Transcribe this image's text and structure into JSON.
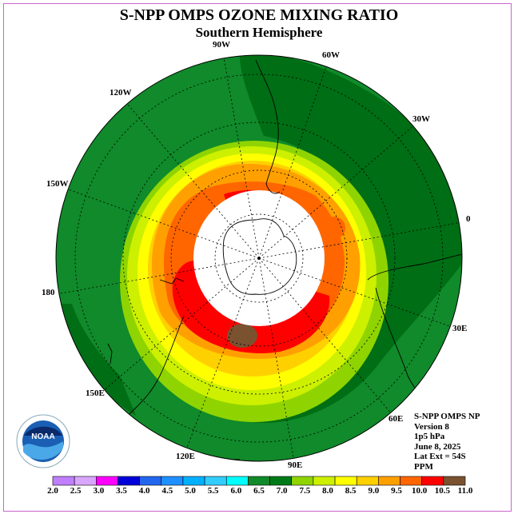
{
  "title": "S-NPP OMPS OZONE MIXING RATIO",
  "subtitle": "Southern Hemisphere",
  "longitude_labels": [
    "90W",
    "60W",
    "30W",
    "0",
    "30E",
    "60E",
    "90E",
    "120E",
    "150E",
    "180",
    "150W",
    "120W"
  ],
  "info": [
    "S-NPP OMPS NP",
    "Version 8",
    "1p5 hPa",
    "June 8, 2025",
    "Lat Ext = 54S",
    "PPM"
  ],
  "logo_text": "NOAA",
  "colorbar": {
    "ticks": [
      "2.0",
      "2.5",
      "3.0",
      "3.5",
      "4.0",
      "4.5",
      "5.0",
      "5.5",
      "6.0",
      "6.5",
      "7.0",
      "7.5",
      "8.0",
      "8.5",
      "9.0",
      "9.5",
      "10.0",
      "10.5",
      "11.0"
    ],
    "colors": [
      "#bf7fff",
      "#d9a6ff",
      "#ff00ff",
      "#0000d9",
      "#2266ee",
      "#1e90ff",
      "#00b0ff",
      "#33ccff",
      "#00ffff",
      "#108a2a",
      "#007a18",
      "#8fd400",
      "#ccf000",
      "#ffff00",
      "#ffd000",
      "#ffa000",
      "#ff6600",
      "#ff0000",
      "#7a5230"
    ]
  }
}
